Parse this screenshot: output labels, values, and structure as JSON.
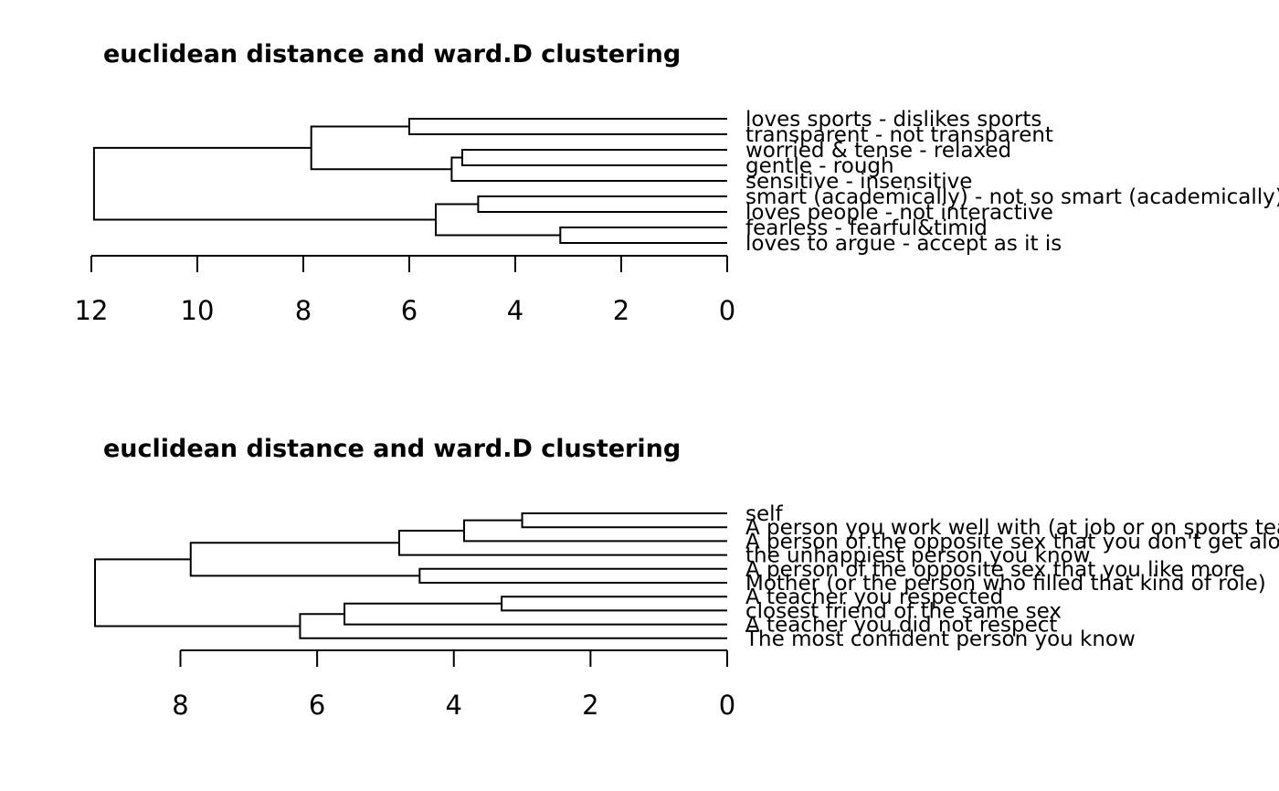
{
  "chart_data": [
    {
      "type": "dendrogram",
      "title": "euclidean distance and ward.D clustering",
      "orientation": "horizontal",
      "xlim": [
        12,
        0
      ],
      "ticks": [
        "12",
        "10",
        "8",
        "6",
        "4",
        "2",
        "0"
      ],
      "leaves": [
        "loves sports - dislikes sports",
        "transparent - not transparent",
        "worried & tense - relaxed",
        "gentle - rough",
        "sensitive - insensitive",
        "smart (academically) - not so smart (academically)",
        "loves people - not interactive",
        "fearless - fearful&timid",
        "loves to argue - accept as it is"
      ],
      "merges": [
        {
          "left": "L3",
          "right": "L4",
          "height": 5.0
        },
        {
          "left": "L8",
          "right": "L9",
          "height": 3.15
        },
        {
          "left": "L6",
          "right": "L7",
          "height": 4.7
        },
        {
          "left": "M1",
          "right": "L5",
          "height": 5.2
        },
        {
          "left": "L1",
          "right": "L2",
          "height": 6.0
        },
        {
          "left": "M3",
          "right": "M2",
          "height": 5.5
        },
        {
          "left": "M5",
          "right": "M4",
          "height": 7.85
        },
        {
          "left": "M7",
          "right": "M6",
          "height": 11.95
        }
      ]
    },
    {
      "type": "dendrogram",
      "title": "euclidean distance and ward.D clustering",
      "orientation": "horizontal",
      "xlim": [
        9.25,
        0
      ],
      "ticks": [
        "8",
        "6",
        "4",
        "2",
        "0"
      ],
      "tick_values": [
        8,
        6,
        4,
        2,
        0
      ],
      "leaves": [
        "self",
        "A person you work well with (at job or on sports team)",
        "A person of the opposite sex that you don't get along with",
        "the unhappiest person you know",
        "A person of the opposite sex that you like more",
        "Mother (or the person who filled that kind of role)",
        "A teacher you respected",
        "closest friend of the same sex",
        "A teacher you did not respect",
        "The most confident person you know"
      ],
      "merges": [
        {
          "left": "L1",
          "right": "L2",
          "height": 3.0
        },
        {
          "left": "L7",
          "right": "L8",
          "height": 3.3
        },
        {
          "left": "M1",
          "right": "L3",
          "height": 3.85
        },
        {
          "left": "L5",
          "right": "L6",
          "height": 4.5
        },
        {
          "left": "M3",
          "right": "L4",
          "height": 4.8
        },
        {
          "left": "M2",
          "right": "L9",
          "height": 5.6
        },
        {
          "left": "M6",
          "right": "L10",
          "height": 6.25
        },
        {
          "left": "M5",
          "right": "M4",
          "height": 7.85
        },
        {
          "left": "M8",
          "right": "M7",
          "height": 9.25
        }
      ]
    }
  ]
}
